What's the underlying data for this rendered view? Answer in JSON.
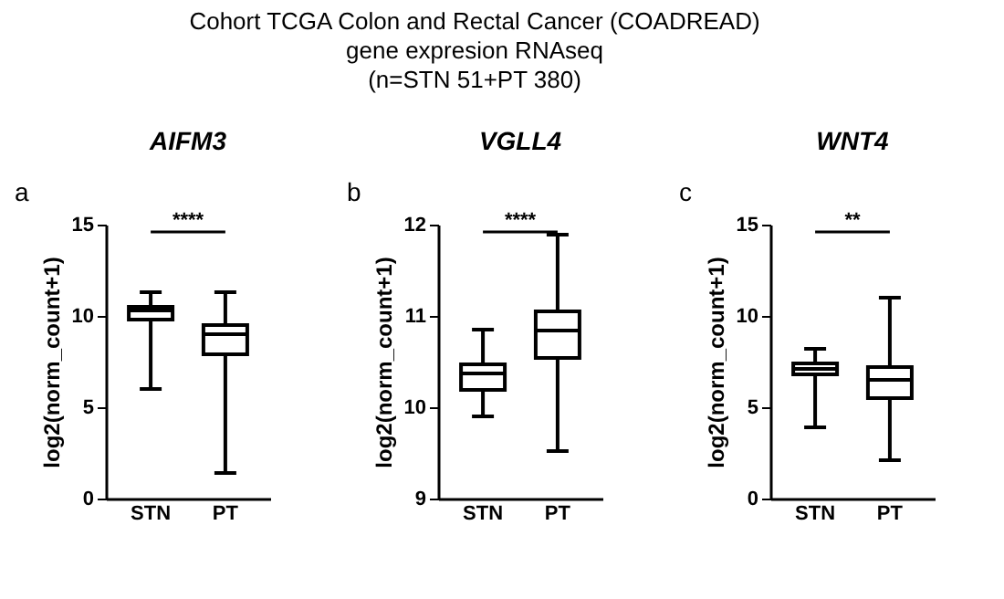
{
  "chart_data": [
    {
      "type": "box",
      "title": "AIFM3",
      "ylabel": "log2(norm_count+1)",
      "categories": [
        "STN",
        "PT"
      ],
      "ylim": [
        0,
        15
      ],
      "yticks": [
        0,
        5,
        10,
        15
      ],
      "grid": false,
      "boxes": [
        {
          "low": 6.0,
          "q1": 9.8,
          "median": 10.3,
          "q3": 10.5,
          "high": 11.3
        },
        {
          "low": 1.4,
          "q1": 7.9,
          "median": 9.0,
          "q3": 9.5,
          "high": 11.3
        }
      ],
      "annotations": [
        "Cohort TCGA Colon and Rectal Cancer (COADREAD)",
        "gene expresion RNAseq",
        "(n=STN 51+PT 380)",
        "a",
        "****"
      ]
    },
    {
      "type": "box",
      "title": "VGLL4",
      "ylabel": "log2(norm_count+1)",
      "categories": [
        "STN",
        "PT"
      ],
      "ylim": [
        9,
        12
      ],
      "yticks": [
        9,
        10,
        11,
        12
      ],
      "grid": false,
      "boxes": [
        {
          "low": 9.9,
          "q1": 10.19,
          "median": 10.37,
          "q3": 10.47,
          "high": 10.85
        },
        {
          "low": 9.52,
          "q1": 10.54,
          "median": 10.84,
          "q3": 11.05,
          "high": 11.89
        }
      ],
      "annotations": [
        "b",
        "****"
      ]
    },
    {
      "type": "box",
      "title": "WNT4",
      "ylabel": "log2(norm_count+1)",
      "categories": [
        "STN",
        "PT"
      ],
      "ylim": [
        0,
        15
      ],
      "yticks": [
        0,
        5,
        10,
        15
      ],
      "grid": false,
      "boxes": [
        {
          "low": 3.9,
          "q1": 6.8,
          "median": 7.1,
          "q3": 7.4,
          "high": 8.2
        },
        {
          "low": 2.1,
          "q1": 5.5,
          "median": 6.5,
          "q3": 7.2,
          "high": 11.0
        }
      ],
      "annotations": [
        "c",
        "**"
      ]
    }
  ]
}
